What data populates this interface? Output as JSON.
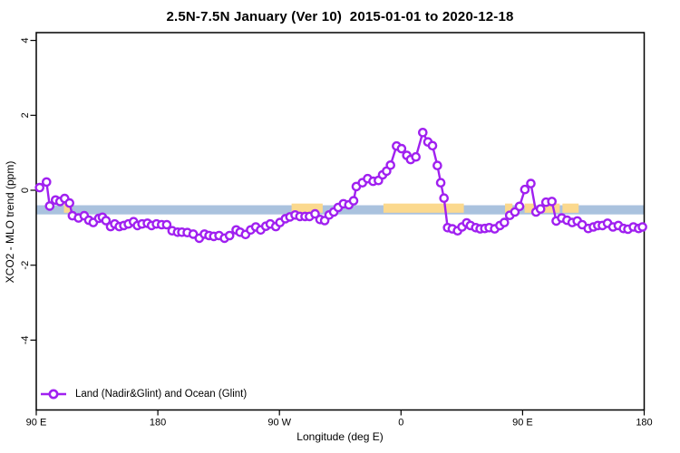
{
  "chart_data": {
    "type": "line",
    "title": "2.5N-7.5N January (Ver 10)  2015-01-01 to 2020-12-18",
    "xlabel": "Longitude (deg E)",
    "ylabel": "XCO2 - MLO trend (ppm)",
    "xlim": [
      90,
      540
    ],
    "x_ticks": [
      {
        "lon": 90,
        "label": "90 E"
      },
      {
        "lon": 180,
        "label": "180"
      },
      {
        "lon": 270,
        "label": "90 W"
      },
      {
        "lon": 360,
        "label": "0"
      },
      {
        "lon": 450,
        "label": "90 E"
      },
      {
        "lon": 540,
        "label": "180"
      }
    ],
    "y_ticks": [
      {
        "value": 4,
        "label": "4"
      },
      {
        "value": 2,
        "label": "2"
      },
      {
        "value": 0,
        "label": "0"
      },
      {
        "value": -2,
        "label": "-2"
      },
      {
        "value": -4,
        "label": "-4"
      }
    ],
    "grid": "off",
    "legend": {
      "position": "bottom-left",
      "label": "Land (Nadir&Glint) and Ocean (Glint)"
    },
    "colors": {
      "series": "#a020f0",
      "marker_fill": "#ffffff",
      "band_blue": "#aac2de",
      "band_orange": "#fbd98e",
      "axis": "#000000"
    },
    "bands": [
      {
        "name": "reference-band-blue",
        "color": "#aac2de",
        "segments": [
          [
            90,
            540
          ]
        ],
        "value_range": [
          -0.645,
          -0.4
        ]
      },
      {
        "name": "reference-band-orange",
        "color": "#fbd98e",
        "segments": [
          [
            110.5,
            116.5
          ],
          [
            279,
            302
          ],
          [
            347,
            406.5
          ],
          [
            437,
            442.5
          ],
          [
            451.5,
            458.5
          ],
          [
            465,
            477.5
          ],
          [
            479.5,
            491.5
          ]
        ],
        "value_range": [
          -0.6,
          -0.355
        ]
      }
    ],
    "series": [
      {
        "name": "Land (Nadir&Glint) and Ocean (Glint)",
        "color": "#a020f0",
        "marker": "open-circle",
        "points": [
          [
            92.5,
            0.07
          ],
          [
            97.6,
            0.22
          ],
          [
            99.9,
            -0.42
          ],
          [
            104.3,
            -0.26
          ],
          [
            107.6,
            -0.3
          ],
          [
            111.0,
            -0.22
          ],
          [
            114.6,
            -0.34
          ],
          [
            116.8,
            -0.68
          ],
          [
            121.3,
            -0.74
          ],
          [
            125.5,
            -0.68
          ],
          [
            128.9,
            -0.8
          ],
          [
            132.2,
            -0.86
          ],
          [
            136.3,
            -0.75
          ],
          [
            139.0,
            -0.72
          ],
          [
            141.6,
            -0.81
          ],
          [
            145.0,
            -0.97
          ],
          [
            148.1,
            -0.9
          ],
          [
            151.5,
            -0.97
          ],
          [
            154.8,
            -0.94
          ],
          [
            158.2,
            -0.9
          ],
          [
            162.0,
            -0.84
          ],
          [
            164.9,
            -0.94
          ],
          [
            168.3,
            -0.9
          ],
          [
            172.3,
            -0.88
          ],
          [
            175.4,
            -0.94
          ],
          [
            179.0,
            -0.9
          ],
          [
            182.8,
            -0.92
          ],
          [
            186.6,
            -0.92
          ],
          [
            190.6,
            -1.08
          ],
          [
            194.6,
            -1.12
          ],
          [
            197.8,
            -1.12
          ],
          [
            201.8,
            -1.13
          ],
          [
            206.2,
            -1.17
          ],
          [
            210.7,
            -1.28
          ],
          [
            214.5,
            -1.17
          ],
          [
            217.9,
            -1.21
          ],
          [
            221.4,
            -1.23
          ],
          [
            225.3,
            -1.21
          ],
          [
            229.3,
            -1.28
          ],
          [
            233.1,
            -1.21
          ],
          [
            238.0,
            -1.06
          ],
          [
            240.9,
            -1.12
          ],
          [
            244.9,
            -1.18
          ],
          [
            248.7,
            -1.06
          ],
          [
            252.5,
            -0.98
          ],
          [
            256.1,
            -1.06
          ],
          [
            259.9,
            -0.96
          ],
          [
            263.2,
            -0.9
          ],
          [
            267.3,
            -0.97
          ],
          [
            270.4,
            -0.86
          ],
          [
            274.4,
            -0.76
          ],
          [
            277.8,
            -0.71
          ],
          [
            281.6,
            -0.66
          ],
          [
            285.2,
            -0.7
          ],
          [
            289.0,
            -0.7
          ],
          [
            292.3,
            -0.7
          ],
          [
            296.4,
            -0.63
          ],
          [
            300.1,
            -0.78
          ],
          [
            303.5,
            -0.81
          ],
          [
            306.8,
            -0.66
          ],
          [
            310.2,
            -0.58
          ],
          [
            313.5,
            -0.46
          ],
          [
            317.4,
            -0.36
          ],
          [
            321.4,
            -0.39
          ],
          [
            324.9,
            -0.28
          ],
          [
            326.9,
            0.1
          ],
          [
            331.4,
            0.2
          ],
          [
            335.3,
            0.31
          ],
          [
            339.3,
            0.24
          ],
          [
            343.3,
            0.26
          ],
          [
            346.4,
            0.41
          ],
          [
            349.3,
            0.51
          ],
          [
            352.2,
            0.67
          ],
          [
            356.7,
            1.18
          ],
          [
            360.4,
            1.11
          ],
          [
            364.3,
            0.93
          ],
          [
            367.1,
            0.82
          ],
          [
            371.0,
            0.89
          ],
          [
            376.1,
            1.54
          ],
          [
            379.9,
            1.29
          ],
          [
            383.3,
            1.19
          ],
          [
            386.9,
            0.66
          ],
          [
            389.4,
            0.2
          ],
          [
            391.8,
            -0.21
          ],
          [
            394.5,
            -1.0
          ],
          [
            398.0,
            -1.03
          ],
          [
            401.9,
            -1.08
          ],
          [
            405.2,
            -0.98
          ],
          [
            408.6,
            -0.87
          ],
          [
            411.4,
            -0.94
          ],
          [
            415.3,
            -1.0
          ],
          [
            418.6,
            -1.03
          ],
          [
            422.0,
            -1.02
          ],
          [
            425.3,
            -1.0
          ],
          [
            429.3,
            -1.03
          ],
          [
            433.2,
            -0.94
          ],
          [
            436.5,
            -0.86
          ],
          [
            440.5,
            -0.67
          ],
          [
            444.3,
            -0.58
          ],
          [
            447.7,
            -0.43
          ],
          [
            451.7,
            0.02
          ],
          [
            456.1,
            0.18
          ],
          [
            459.9,
            -0.58
          ],
          [
            463.3,
            -0.5
          ],
          [
            467.3,
            -0.32
          ],
          [
            471.7,
            -0.3
          ],
          [
            474.9,
            -0.82
          ],
          [
            478.9,
            -0.74
          ],
          [
            482.9,
            -0.8
          ],
          [
            486.7,
            -0.86
          ],
          [
            490.5,
            -0.82
          ],
          [
            494.1,
            -0.92
          ],
          [
            498.6,
            -1.02
          ],
          [
            502.4,
            -0.98
          ],
          [
            505.7,
            -0.94
          ],
          [
            509.1,
            -0.94
          ],
          [
            512.9,
            -0.88
          ],
          [
            516.9,
            -0.98
          ],
          [
            520.9,
            -0.94
          ],
          [
            524.7,
            -1.02
          ],
          [
            528.0,
            -1.04
          ],
          [
            532.0,
            -0.98
          ],
          [
            535.9,
            -1.02
          ],
          [
            538.7,
            -0.98
          ]
        ]
      }
    ]
  }
}
